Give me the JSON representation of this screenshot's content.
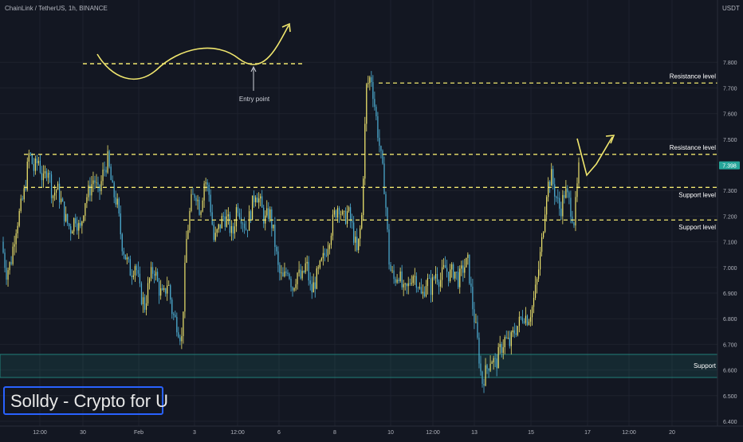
{
  "header": {
    "symbol_text": "ChainLink / TetherUS, 1h, BINANCE",
    "currency": "USDT"
  },
  "watermark": "Solldy - Crypto for U",
  "chart_data": {
    "type": "candlestick",
    "title": "ChainLink / TetherUS, 1h, BINANCE",
    "ylabel": "USDT",
    "ylim": [
      6.4,
      7.9
    ],
    "y_ticks": [
      "6.400",
      "6.500",
      "6.600",
      "6.700",
      "6.800",
      "6.900",
      "7.000",
      "7.100",
      "7.200",
      "7.300",
      "7.400",
      "7.500",
      "7.600",
      "7.700",
      "7.800"
    ],
    "x_tick_labels": [
      "12:00",
      "30",
      "Feb",
      "3",
      "12:00",
      "6",
      "8",
      "10",
      "12:00",
      "13",
      "15",
      "17",
      "12:00",
      "20"
    ],
    "colors": {
      "up": "#f0e66e",
      "down": "#4fb3d9",
      "level": "#f0e66e",
      "support_zone": "#26a69a",
      "background": "#131722"
    },
    "close_series": [
      7.1,
      6.98,
      7.02,
      7.15,
      7.22,
      7.3,
      7.45,
      7.38,
      7.42,
      7.33,
      7.4,
      7.28,
      7.31,
      7.25,
      7.18,
      7.15,
      7.2,
      7.14,
      7.26,
      7.3,
      7.35,
      7.28,
      7.37,
      7.42,
      7.3,
      7.25,
      7.1,
      7.03,
      6.98,
      7.02,
      6.9,
      6.85,
      6.95,
      7.0,
      6.92,
      6.88,
      6.95,
      6.82,
      6.78,
      6.72,
      7.1,
      7.25,
      7.3,
      7.22,
      7.35,
      7.28,
      7.1,
      7.15,
      7.2,
      7.18,
      7.12,
      7.25,
      7.2,
      7.15,
      7.22,
      7.3,
      7.25,
      7.18,
      7.22,
      7.12,
      6.98,
      6.95,
      7.0,
      6.92,
      6.98,
      6.95,
      7.02,
      6.9,
      6.95,
      7.0,
      7.05,
      7.12,
      7.2,
      7.25,
      7.18,
      7.22,
      7.15,
      7.05,
      7.2,
      7.7,
      7.75,
      7.6,
      7.45,
      7.3,
      7.0,
      6.95,
      6.98,
      6.9,
      6.92,
      6.98,
      6.95,
      6.88,
      6.95,
      6.92,
      6.98,
      6.95,
      7.0,
      6.97,
      6.99,
      6.95,
      7.0,
      7.02,
      6.85,
      6.72,
      6.55,
      6.6,
      6.65,
      6.62,
      6.68,
      6.72,
      6.7,
      6.75,
      6.78,
      6.82,
      6.8,
      6.85,
      6.95,
      7.1,
      7.3,
      7.36,
      7.28,
      7.22,
      7.3,
      7.25,
      7.18,
      7.38
    ],
    "annotations": [
      {
        "label": "Resistance level",
        "value": 7.719,
        "value_label": "7.719",
        "kind": "resistance"
      },
      {
        "label": "Resistance level",
        "value": 7.441,
        "value_label": "7.441",
        "kind": "resistance"
      },
      {
        "label": "Support level",
        "value": 7.312,
        "value_label": "7.312",
        "kind": "support"
      },
      {
        "label": "Support level",
        "value": 7.185,
        "value_label": "7.185",
        "kind": "support"
      }
    ],
    "current_price": {
      "value": 7.398,
      "label": "7.398"
    },
    "support_zone": {
      "label": "Support",
      "from": 6.565,
      "to": 6.65
    },
    "entry_note": "Entry point"
  }
}
